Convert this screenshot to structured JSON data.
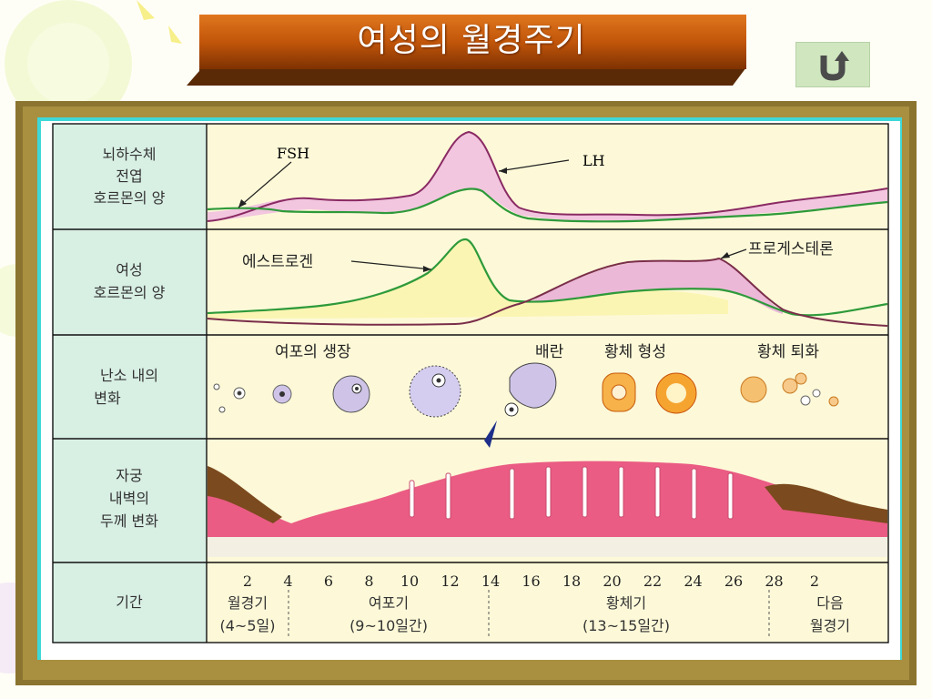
{
  "header": {
    "title": "여성의 월경주기",
    "back_icon": "u-turn-arrow-icon"
  },
  "diagram": {
    "rows": [
      {
        "label_lines": [
          "뇌하수체",
          "전엽",
          "호르몬의 양"
        ]
      },
      {
        "label_lines": [
          "여성",
          "호르몬의 양"
        ]
      },
      {
        "label_lines": [
          "난소 내의",
          "변화"
        ]
      },
      {
        "label_lines": [
          "자궁",
          "내벽의",
          "두께 변화"
        ]
      },
      {
        "label_lines": [
          "기간"
        ]
      }
    ],
    "hormone_labels": {
      "fsh": "FSH",
      "lh": "LH",
      "estrogen": "에스트로겐",
      "progesterone": "프로게스테론"
    },
    "ovary_labels": {
      "growth": "여포의 생장",
      "ovulation": "배란",
      "formation": "황체 형성",
      "degeneration": "황체 퇴화"
    },
    "days": [
      "2",
      "4",
      "6",
      "8",
      "10",
      "12",
      "14",
      "16",
      "18",
      "20",
      "22",
      "24",
      "26",
      "28",
      "2"
    ],
    "phases": [
      {
        "name": "월경기",
        "range": "(4~5일)"
      },
      {
        "name": "여포기",
        "range": "(9~10일간)"
      },
      {
        "name": "황체기",
        "range": "(13~15일간)"
      },
      {
        "name": "다음",
        "range": "월경기"
      }
    ],
    "colors": {
      "panel": "#fdf9d8",
      "label_col": "#d8efe4",
      "lh_fill": "#f2c6df",
      "lh_line": "#8a2a63",
      "fsh_line": "#2e9a3a",
      "estrogen_line": "#2e9a3a",
      "progesterone_line": "#7a2e4a",
      "endometrium": "#e8557f",
      "menstrual": "#7b4a1e",
      "frame_gold": "#8b7430"
    }
  }
}
